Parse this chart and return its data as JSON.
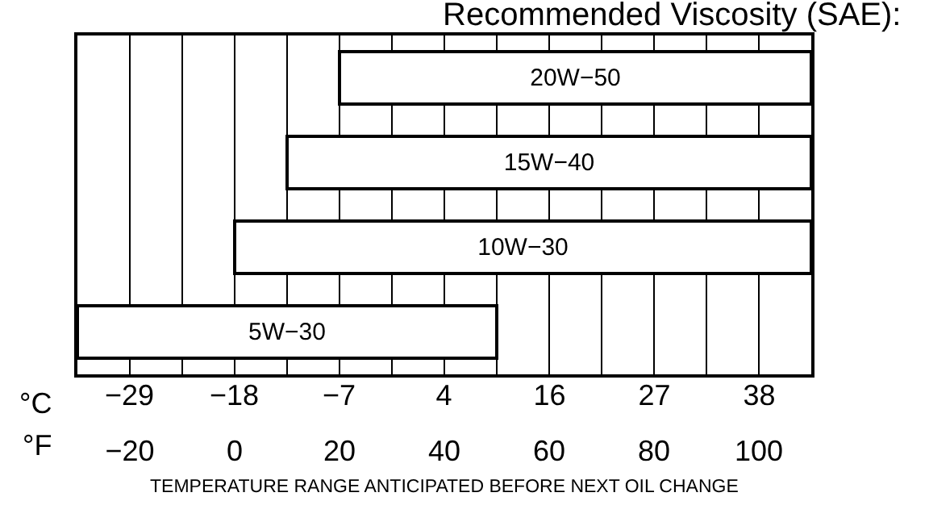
{
  "chart_data": {
    "type": "bar",
    "orientation": "horizontal",
    "title": "Recommended Viscosity (SAE):",
    "xlabel": "°F",
    "x2label": "°C",
    "categories": [
      "20W−50",
      "15W−40",
      "10W−30",
      "5W−30"
    ],
    "base": [
      20,
      10,
      0,
      -30
    ],
    "values": [
      90,
      100,
      110,
      80
    ],
    "color": "#ffffff",
    "xlim": [
      -30,
      110
    ],
    "xticks": [
      {
        "value": -30,
        "label": null
      },
      {
        "value": -20,
        "label": "−20"
      },
      {
        "value": -10,
        "label": null
      },
      0,
      {
        "value": 10,
        "label": null
      },
      20,
      {
        "value": 30,
        "label": null
      },
      40,
      {
        "value": 50,
        "label": null
      },
      60,
      {
        "value": 70,
        "label": null
      },
      80,
      {
        "value": 90,
        "label": null
      },
      100,
      {
        "value": 110,
        "label": null
      }
    ],
    "x2lim": [
      -34.4,
      43.3
    ],
    "x2ticks": [
      {
        "value": -28.9,
        "label": "−29"
      },
      {
        "value": -17.8,
        "label": "−18"
      },
      {
        "value": -6.7,
        "label": "−7"
      },
      {
        "value": 4.4,
        "label": "4"
      },
      {
        "value": 15.6,
        "label": "16"
      },
      {
        "value": 26.7,
        "label": "27"
      },
      {
        "value": 37.8,
        "label": "38"
      }
    ],
    "grid": "x",
    "tick_labels": "x",
    "annotations": [
      "TEMPERATURE RANGE ANTICIPATED BEFORE NEXT OIL CHANGE"
    ]
  }
}
